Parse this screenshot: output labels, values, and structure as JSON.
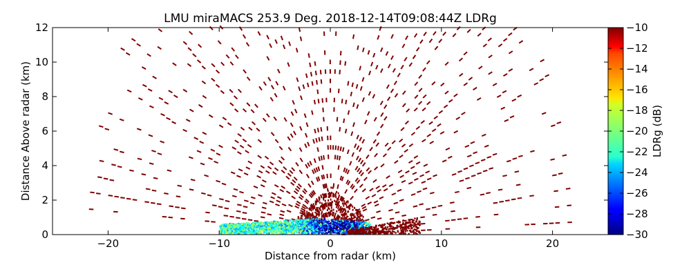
{
  "chart_data": {
    "type": "heatmap",
    "title": "LMU miraMACS 253.9 Deg. 2018-12-14T09:08:44Z  LDRg",
    "xlabel": "Distance from radar (km)",
    "ylabel": "Distance Above radar  (km)",
    "xlim": [
      -25,
      25
    ],
    "ylim": [
      0,
      12
    ],
    "xticks": [
      -20,
      -10,
      0,
      10,
      20
    ],
    "xtick_labels": [
      "−20",
      "−10",
      "0",
      "10",
      "20"
    ],
    "yticks": [
      0,
      2,
      4,
      6,
      8,
      10,
      12
    ],
    "ytick_labels": [
      "0",
      "2",
      "4",
      "6",
      "8",
      "10",
      "12"
    ],
    "grid": false,
    "colorbar": {
      "label": "LDRg (dB)",
      "range": [
        -30,
        -10
      ],
      "colormap": "jet",
      "ticks": [
        -10,
        -12,
        -14,
        -16,
        -18,
        -20,
        -22,
        -24,
        -26,
        -28,
        -30
      ],
      "tick_labels": [
        "−10",
        "−12",
        "−14",
        "−16",
        "−18",
        "−20",
        "−22",
        "−24",
        "−26",
        "−28",
        "−30"
      ]
    },
    "scan": {
      "azimuth_deg": 253.9,
      "max_range_km": 22,
      "dominant_value_db": -10,
      "near_ground_values_db": [
        -30,
        -12
      ]
    }
  }
}
